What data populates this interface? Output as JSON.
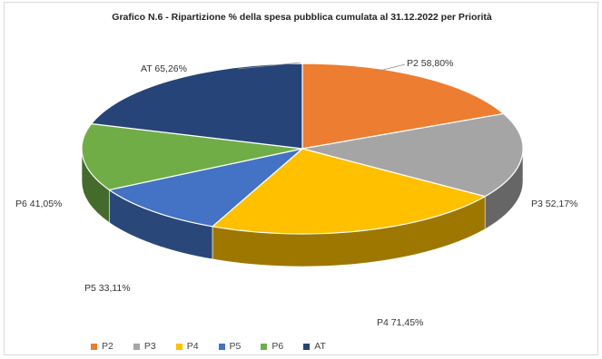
{
  "chart_data": {
    "type": "pie",
    "title": "Grafico N.6 - Ripartizione % della spesa pubblica cumulata al 31.12.2022 per Priorità",
    "categories": [
      "P2",
      "P3",
      "P4",
      "P5",
      "P6",
      "AT"
    ],
    "values": [
      58.8,
      52.17,
      71.45,
      33.11,
      41.05,
      65.26
    ],
    "data_labels": [
      "P2 58,80%",
      "P3 52,17%",
      "P4 71,45%",
      "P5 33,11%",
      "P6 41,05%",
      "AT 65,26%"
    ],
    "colors": [
      "#ED7D31",
      "#A5A5A5",
      "#FFC000",
      "#4472C4",
      "#70AD47",
      "#264478"
    ],
    "style": "3d",
    "legend_position": "bottom"
  }
}
